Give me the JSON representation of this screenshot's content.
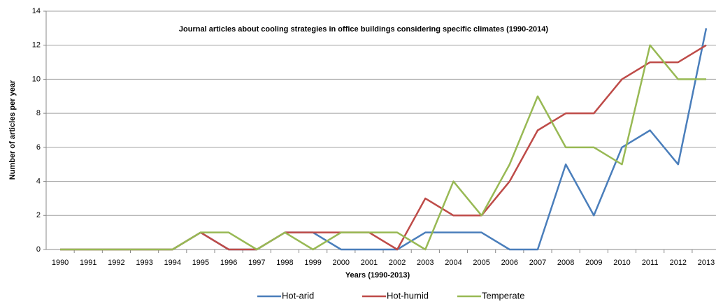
{
  "chart_data": {
    "type": "line",
    "title": "Journal articles about cooling strategies in office buildings considering specific climates (1990-2014)",
    "x_label": "Years (1990-2013)",
    "y_label": "Number of articles per year",
    "categories": [
      "1990",
      "1991",
      "1992",
      "1993",
      "1994",
      "1995",
      "1996",
      "1997",
      "1998",
      "1999",
      "2000",
      "2001",
      "2002",
      "2003",
      "2004",
      "2005",
      "2006",
      "2007",
      "2008",
      "2009",
      "2010",
      "2011",
      "2012",
      "2013"
    ],
    "series": [
      {
        "name": "Hot-arid",
        "color": "#4a7ebb",
        "values": [
          0,
          0,
          0,
          0,
          0,
          1,
          0,
          0,
          1,
          1,
          0,
          0,
          0,
          1,
          1,
          1,
          0,
          0,
          5,
          2,
          6,
          7,
          5,
          13
        ]
      },
      {
        "name": "Hot-humid",
        "color": "#be4b48",
        "values": [
          0,
          0,
          0,
          0,
          0,
          1,
          0,
          0,
          1,
          1,
          1,
          1,
          0,
          3,
          2,
          2,
          4,
          7,
          8,
          8,
          10,
          11,
          11,
          12
        ]
      },
      {
        "name": "Temperate",
        "color": "#98b954",
        "values": [
          0,
          0,
          0,
          0,
          0,
          1,
          1,
          0,
          1,
          0,
          1,
          1,
          1,
          0,
          4,
          2,
          5,
          9,
          6,
          6,
          5,
          12,
          10,
          10
        ]
      }
    ],
    "ylim": [
      0,
      14
    ],
    "yticks": [
      0,
      2,
      4,
      6,
      8,
      10,
      12,
      14
    ],
    "grid": true,
    "legend": "bottom"
  }
}
